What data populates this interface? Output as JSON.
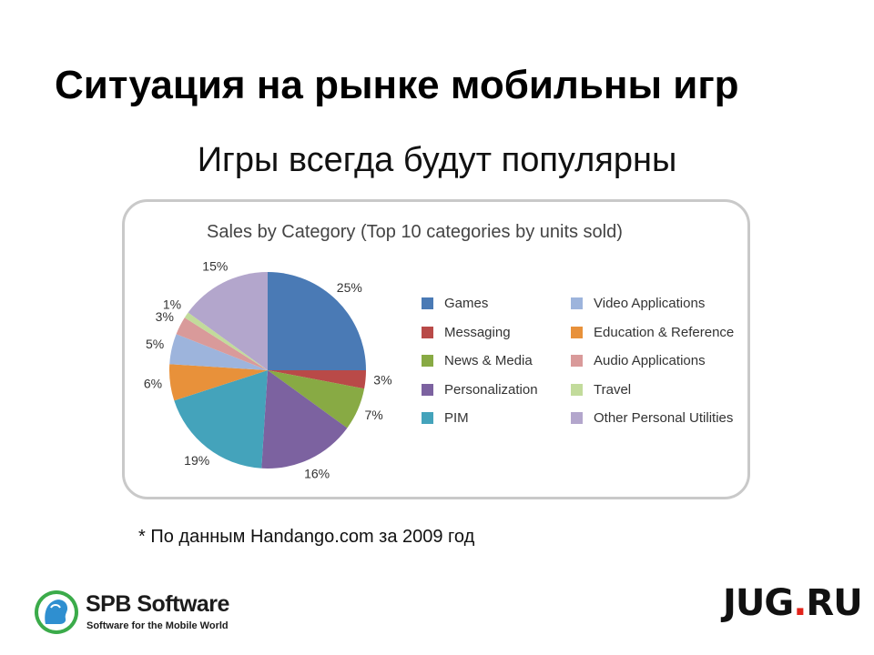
{
  "slide": {
    "title": "Ситуация на рынке мобильны игр",
    "subtitle": "Игры всегда будут популярны",
    "footnote": "* По данным Handango.com за 2009 год"
  },
  "logos": {
    "spb_name": "SPB Software",
    "spb_tagline": "Software for the Mobile World",
    "spb_icon": "spb-globe-face-icon",
    "jug_part1": "JUG",
    "jug_dot": ".",
    "jug_part2": "RU",
    "jug_accent_color": "#e2231a"
  },
  "chart_data": {
    "type": "pie",
    "title": "Sales by Category (Top 10 categories by units sold)",
    "legend_placement": "right",
    "slices": [
      {
        "label": "Games",
        "value": 25,
        "display": "25%",
        "color": "#4a7ab5"
      },
      {
        "label": "Messaging",
        "value": 3,
        "display": "3%",
        "color": "#b94a48"
      },
      {
        "label": "News & Media",
        "value": 7,
        "display": "7%",
        "color": "#88aa44"
      },
      {
        "label": "Personalization",
        "value": 16,
        "display": "16%",
        "color": "#7c62a0"
      },
      {
        "label": "PIM",
        "value": 19,
        "display": "19%",
        "color": "#44a3bb"
      },
      {
        "label": "Education & Reference",
        "value": 6,
        "display": "6%",
        "color": "#e8913a"
      },
      {
        "label": "Video Applications",
        "value": 5,
        "display": "5%",
        "color": "#9db4dc"
      },
      {
        "label": "Audio Applications",
        "value": 3,
        "display": "3%",
        "color": "#d99a9a"
      },
      {
        "label": "Travel",
        "value": 1,
        "display": "1%",
        "color": "#c2db9b"
      },
      {
        "label": "Other Personal Utilities",
        "value": 15,
        "display": "15%",
        "color": "#b3a6cc"
      }
    ],
    "legend_order": [
      "Games",
      "Messaging",
      "News & Media",
      "Personalization",
      "PIM",
      "Video Applications",
      "Education & Reference",
      "Audio Applications",
      "Travel",
      "Other Personal Utilities"
    ]
  }
}
